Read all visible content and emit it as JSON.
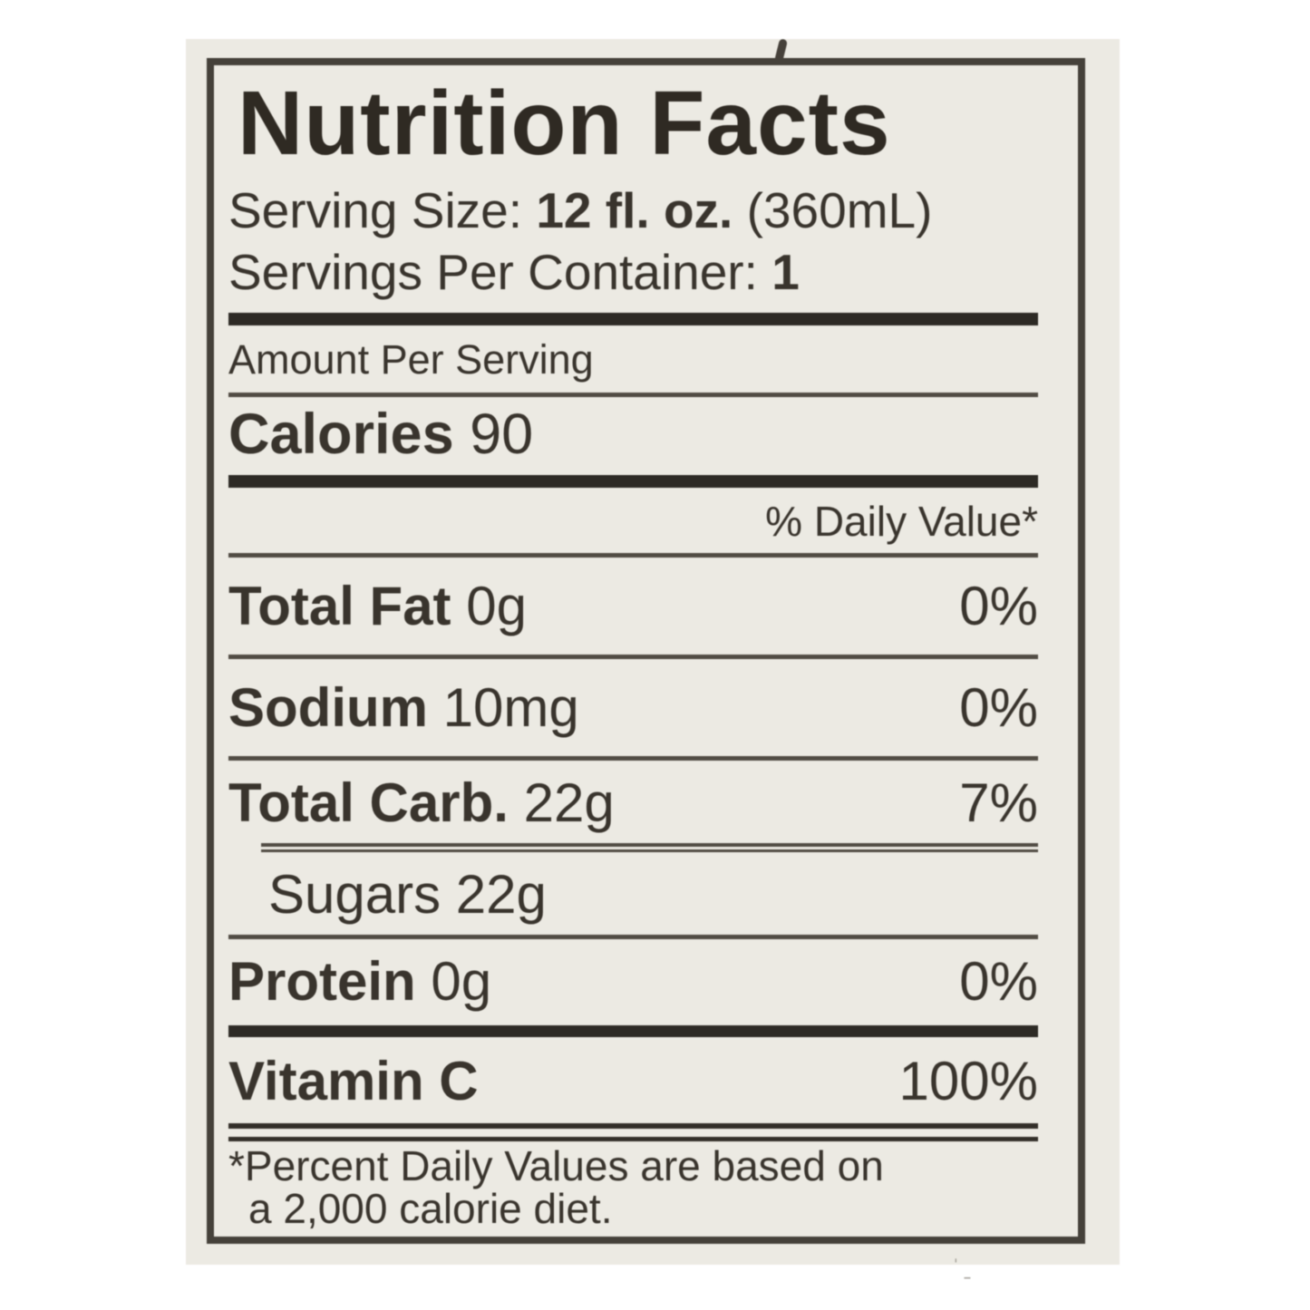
{
  "label": {
    "title": "Nutrition Facts",
    "serving_size": {
      "prefix": "Serving Size:",
      "amount": "12 fl. oz.",
      "metric": "(360mL)"
    },
    "servings_per_container": {
      "prefix": "Servings Per Container:",
      "value": "1"
    },
    "amount_per_serving": "Amount Per Serving",
    "calories": {
      "name": "Calories",
      "value": "90"
    },
    "daily_value_header": "% Daily Value*",
    "rows": [
      {
        "name": "Total Fat",
        "amount": "0g",
        "dv": "0%"
      },
      {
        "name": "Sodium",
        "amount": "10mg",
        "dv": "0%"
      },
      {
        "name": "Total Carb.",
        "amount": "22g",
        "dv": "7%"
      },
      {
        "name": "Sugars",
        "amount": "22g",
        "dv": ""
      },
      {
        "name": "Protein",
        "amount": "0g",
        "dv": "0%"
      }
    ],
    "vitamins": [
      {
        "name": "Vitamin C",
        "dv": "100%"
      }
    ],
    "footnote": {
      "line1": "*Percent Daily Values are based on",
      "line2": "a 2,000 calorie diet."
    },
    "colors": {
      "canvas_background": "#ffffff",
      "photo_background": "#eceae3",
      "text": "#39342d",
      "border": "#45413a",
      "thick_rule": "#2d2a25"
    }
  }
}
